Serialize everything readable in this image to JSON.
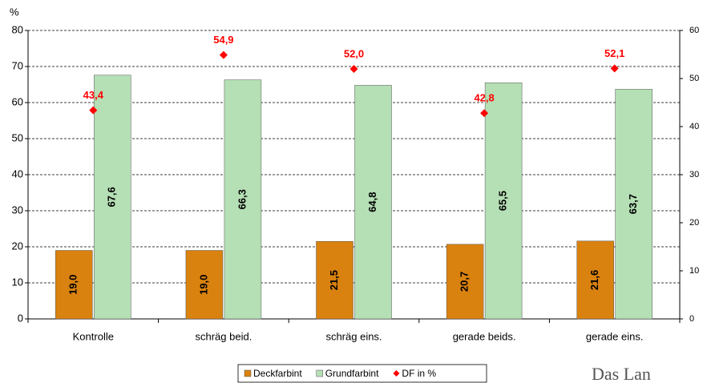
{
  "chart_data": {
    "type": "bar",
    "y_label": "%",
    "categories": [
      "Kontrolle",
      "schräg beid.",
      "schräg eins.",
      "gerade beids.",
      "gerade eins."
    ],
    "series": [
      {
        "name": "Deckfarbint",
        "color": "#d9820f",
        "values": [
          19.0,
          19.0,
          21.5,
          20.7,
          21.6
        ],
        "value_labels": [
          "19,0",
          "19,0",
          "21,5",
          "20,7",
          "21,6"
        ]
      },
      {
        "name": "Grundfarbint",
        "color": "#b5dfb5",
        "values": [
          67.6,
          66.3,
          64.8,
          65.5,
          63.7
        ],
        "value_labels": [
          "67,6",
          "66,3",
          "64,8",
          "65,5",
          "63,7"
        ]
      },
      {
        "name": "DF in %",
        "color": "#ff0000",
        "type": "scatter",
        "axis": "y2",
        "values": [
          43.4,
          54.9,
          52.0,
          42.8,
          52.1
        ],
        "value_labels": [
          "43,4",
          "54,9",
          "52,0",
          "42,8",
          "52,1"
        ]
      }
    ],
    "ylim": [
      0,
      80
    ],
    "yticks": [
      0,
      10,
      20,
      30,
      40,
      50,
      60,
      70,
      80
    ],
    "y2lim": [
      0,
      60
    ],
    "y2ticks": [
      0,
      10,
      20,
      30,
      40,
      50,
      60
    ],
    "grid": true,
    "legend": "bottom",
    "watermark": "Das Lan"
  }
}
